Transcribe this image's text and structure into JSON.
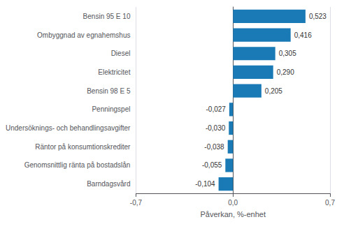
{
  "chart_data": {
    "type": "bar",
    "orientation": "horizontal",
    "categories": [
      "Barndagsvård",
      "Genomsnittlig ränta på bostadslån",
      "Räntor på konsumtionskrediter",
      "Undersöknings- och behandlingsavgifter",
      "Penningspel",
      "Bensin 98 E 5",
      "Elektricitet",
      "Diesel",
      "Ombyggnad av egnahemshus",
      "Bensin 95 E 10"
    ],
    "values": [
      -0.104,
      -0.055,
      -0.038,
      -0.03,
      -0.027,
      0.205,
      0.29,
      0.305,
      0.416,
      0.523
    ],
    "value_labels": [
      "-0,104",
      "-0,055",
      "-0,038",
      "-0,030",
      "-0,027",
      "0,205",
      "0,290",
      "0,305",
      "0,416",
      "0,523"
    ],
    "data_labels": true,
    "color": "#1a7ab5",
    "xlabel": "Påverkan, %-enhet",
    "xlim": [
      -0.7,
      0.7
    ],
    "xticks": [
      {
        "value": -0.7,
        "label": "-0,7"
      },
      {
        "value": 0.0,
        "label": "0,0"
      },
      {
        "value": 0.7,
        "label": "0,7"
      }
    ],
    "grid": true
  }
}
